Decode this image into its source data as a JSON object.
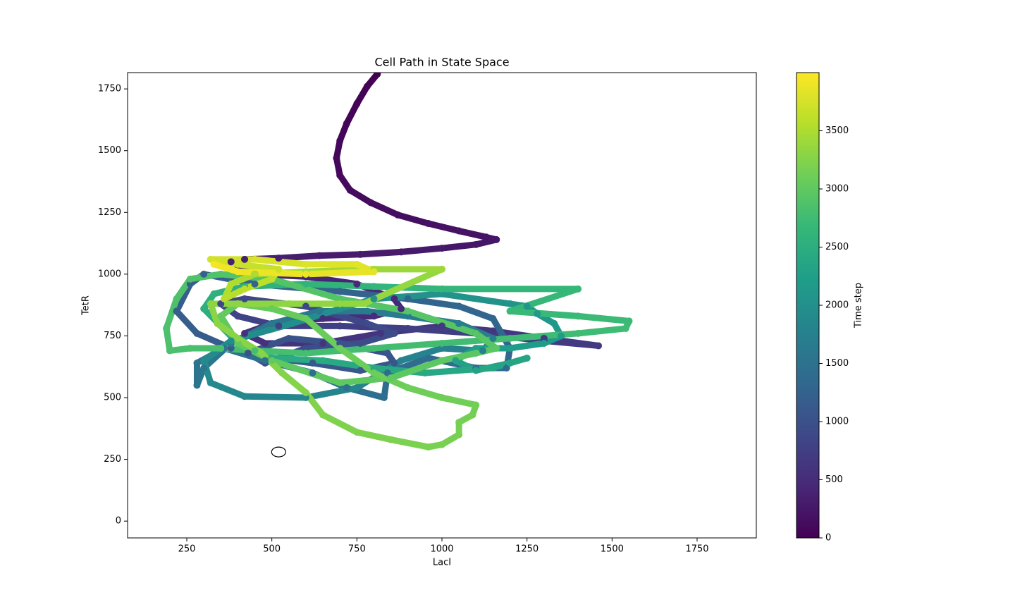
{
  "chart_data": {
    "type": "scatter",
    "title": "Cell Path in State Space",
    "x_label": "LacI",
    "y_label": "TetR",
    "x": [
      810,
      780,
      750,
      720,
      700,
      690,
      700,
      730,
      790,
      870,
      960,
      1050,
      1130,
      1160,
      1100,
      1000,
      880,
      760,
      640,
      520,
      420,
      380,
      450,
      600,
      750,
      860,
      880,
      800,
      650,
      500,
      420,
      480,
      650,
      820,
      1000,
      1150,
      1300,
      1460,
      1300,
      1100,
      900,
      700,
      520,
      400,
      350,
      420,
      600,
      780,
      860,
      760,
      600,
      480,
      430,
      550,
      700,
      840,
      860,
      760,
      620,
      500,
      380,
      280,
      220,
      260,
      300,
      450,
      700,
      900,
      1050,
      1150,
      1200,
      1190,
      1100,
      960,
      840,
      830,
      720,
      620,
      480,
      360,
      280,
      280,
      300,
      380,
      500,
      640,
      780,
      900,
      1050,
      1150,
      1120,
      1000,
      880,
      750,
      600,
      420,
      320,
      300,
      380,
      560,
      700,
      800,
      1000,
      1200,
      1250,
      1280,
      1330,
      1350,
      1300,
      1200,
      1100,
      1040,
      1100,
      1200,
      1250,
      1150,
      950,
      800,
      650,
      500,
      400,
      300,
      330,
      420,
      600,
      800,
      1000,
      1400,
      1200,
      1400,
      1550,
      1540,
      1400,
      1200,
      1000,
      800,
      600,
      450,
      350,
      260,
      200,
      190,
      220,
      260,
      350,
      500,
      700,
      900,
      1100,
      1160,
      1100,
      1000,
      850,
      700,
      500,
      400,
      350,
      400,
      500,
      600,
      700,
      800,
      900,
      1000,
      1100,
      1090,
      1050,
      1050,
      1000,
      960,
      850,
      750,
      650,
      600,
      530,
      470,
      400,
      340,
      320,
      400,
      550,
      700,
      770,
      1000,
      800,
      600,
      450,
      380,
      360,
      420,
      500,
      520,
      400,
      320,
      450,
      600,
      750,
      800,
      600,
      400,
      330
    ],
    "y": [
      1810,
      1760,
      1690,
      1610,
      1540,
      1470,
      1400,
      1340,
      1290,
      1240,
      1205,
      1175,
      1150,
      1140,
      1120,
      1105,
      1090,
      1080,
      1075,
      1065,
      1060,
      1050,
      1000,
      990,
      960,
      900,
      860,
      830,
      820,
      800,
      760,
      720,
      720,
      760,
      790,
      770,
      740,
      710,
      730,
      760,
      780,
      790,
      790,
      830,
      880,
      900,
      870,
      800,
      760,
      720,
      700,
      640,
      680,
      740,
      720,
      680,
      640,
      610,
      640,
      660,
      700,
      760,
      850,
      960,
      1000,
      960,
      930,
      900,
      870,
      820,
      700,
      620,
      620,
      660,
      600,
      500,
      540,
      600,
      650,
      700,
      640,
      550,
      620,
      720,
      800,
      850,
      850,
      830,
      800,
      740,
      690,
      700,
      650,
      540,
      500,
      505,
      560,
      650,
      730,
      800,
      860,
      900,
      920,
      880,
      870,
      840,
      800,
      750,
      720,
      700,
      700,
      650,
      610,
      640,
      660,
      620,
      600,
      620,
      650,
      660,
      720,
      860,
      920,
      950,
      960,
      950,
      940,
      940,
      850,
      830,
      810,
      780,
      760,
      740,
      720,
      700,
      680,
      690,
      700,
      700,
      690,
      780,
      900,
      980,
      1000,
      980,
      900,
      850,
      760,
      700,
      680,
      650,
      580,
      560,
      650,
      720,
      830,
      880,
      860,
      820,
      700,
      600,
      540,
      500,
      470,
      430,
      400,
      350,
      310,
      300,
      330,
      360,
      430,
      520,
      600,
      680,
      740,
      800,
      880,
      880,
      880,
      880,
      880,
      1020,
      1020,
      1010,
      1000,
      960,
      900,
      940,
      980,
      1020,
      1040,
      1060,
      1060,
      1040,
      1040,
      1010,
      1000,
      1010,
      1040
    ],
    "c": [
      0,
      18,
      36,
      54,
      72,
      90,
      108,
      126,
      144,
      162,
      180,
      198,
      216,
      234,
      252,
      270,
      288,
      306,
      324,
      342,
      360,
      378,
      400,
      420,
      440,
      460,
      480,
      500,
      520,
      540,
      560,
      580,
      600,
      620,
      640,
      660,
      680,
      700,
      720,
      740,
      760,
      780,
      800,
      820,
      840,
      860,
      880,
      900,
      920,
      940,
      960,
      980,
      1000,
      1019,
      1038,
      1057,
      1076,
      1095,
      1114,
      1133,
      1152,
      1171,
      1190,
      1209,
      1228,
      1247,
      1266,
      1285,
      1304,
      1323,
      1342,
      1361,
      1380,
      1399,
      1418,
      1437,
      1456,
      1475,
      1494,
      1513,
      1532,
      1551,
      1570,
      1589,
      1608,
      1627,
      1650,
      1675,
      1700,
      1725,
      1750,
      1775,
      1800,
      1825,
      1850,
      1875,
      1900,
      1925,
      1950,
      1975,
      2000,
      2025,
      2050,
      2075,
      2100,
      2125,
      2150,
      2175,
      2200,
      2225,
      2250,
      2275,
      2300,
      2325,
      2350,
      2375,
      2400,
      2425,
      2450,
      2475,
      2500,
      2525,
      2550,
      2575,
      2600,
      2625,
      2650,
      2675,
      2700,
      2712,
      2724,
      2736,
      2748,
      2760,
      2772,
      2784,
      2796,
      2808,
      2820,
      2832,
      2844,
      2856,
      2868,
      2880,
      2892,
      2904,
      2916,
      2928,
      2940,
      2952,
      2964,
      2976,
      2988,
      3000,
      3012,
      3024,
      3036,
      3048,
      3060,
      3072,
      3084,
      3096,
      3110,
      3122,
      3134,
      3146,
      3158,
      3170,
      3182,
      3194,
      3206,
      3218,
      3230,
      3242,
      3254,
      3266,
      3278,
      3290,
      3302,
      3314,
      3326,
      3338,
      3350,
      3400,
      3433,
      3466,
      3499,
      3532,
      3565,
      3598,
      3631,
      3664,
      3697,
      3730,
      3763,
      3796,
      3829,
      3862,
      3895,
      3928,
      3961
    ],
    "colormap": [
      "#440154",
      "#482878",
      "#3e4989",
      "#31688e",
      "#26828e",
      "#1f9e89",
      "#35b779",
      "#6ece58",
      "#b5de2b",
      "#fde725"
    ],
    "xlim": [
      76,
      1924
    ],
    "xticks": [
      250,
      500,
      750,
      1000,
      1250,
      1500,
      1750
    ],
    "ylim": [
      -68,
      1816
    ],
    "yticks": [
      0,
      250,
      500,
      750,
      1000,
      1250,
      1500,
      1750
    ],
    "marker": {
      "x": 520,
      "y": 280
    },
    "colorbar": {
      "label": "Time step",
      "lim": [
        0,
        4000
      ],
      "ticks": [
        0,
        500,
        1000,
        1500,
        2000,
        2500,
        3000,
        3500
      ]
    }
  }
}
